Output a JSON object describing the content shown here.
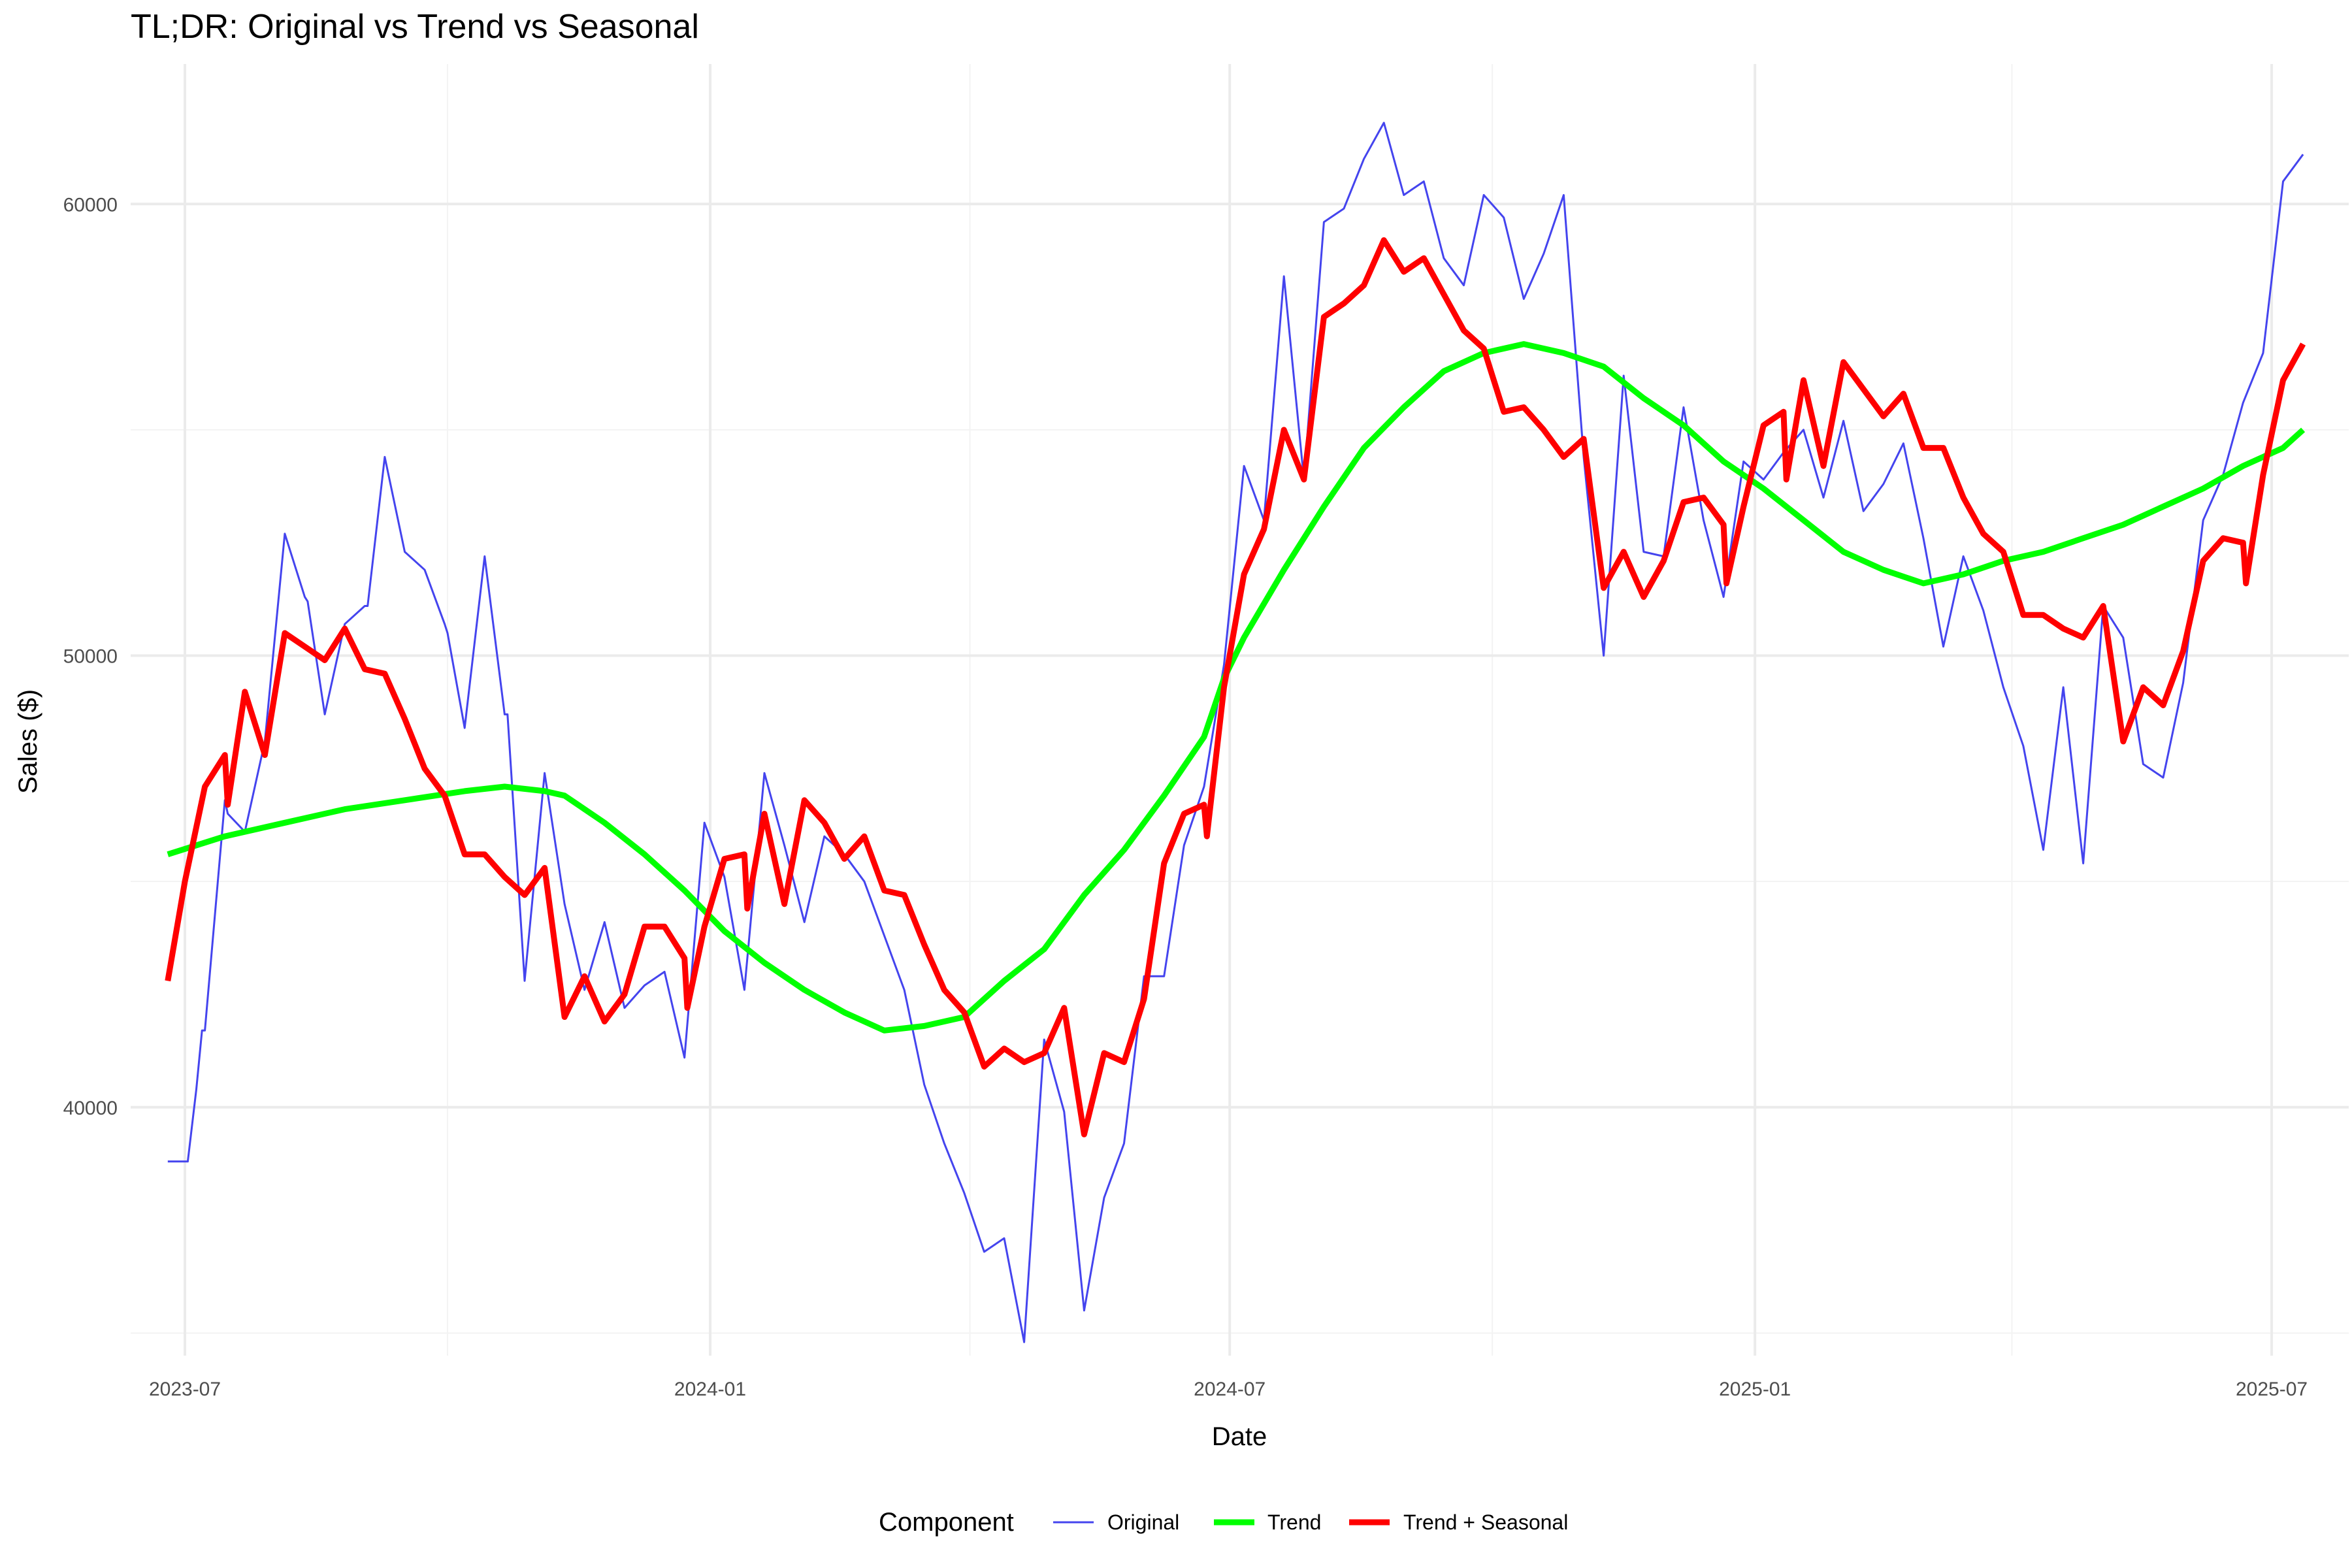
{
  "colors": {
    "original": "#4444ee",
    "trend": "#00ff00",
    "trend_seasonal": "#ff0000",
    "grid_major": "#ebebeb",
    "grid_minor": "#f3f3f3"
  },
  "chart_data": {
    "type": "line",
    "title": "TL;DR: Original vs Trend vs Seasonal",
    "xlabel": "Date",
    "ylabel": "Sales ($)",
    "xlim_days": [
      -19,
      758
    ],
    "ylim": [
      34500,
      63100
    ],
    "x_ticks": [
      {
        "label": "2023-07",
        "day": 0
      },
      {
        "label": "2024-01",
        "day": 184
      },
      {
        "label": "2024-07",
        "day": 366
      },
      {
        "label": "2025-01",
        "day": 550
      },
      {
        "label": "2025-07",
        "day": 731
      }
    ],
    "x_minor_days": [
      92,
      275,
      458,
      640
    ],
    "y_ticks": [
      {
        "label": "40000",
        "value": 40000
      },
      {
        "label": "50000",
        "value": 50000
      },
      {
        "label": "60000",
        "value": 60000
      }
    ],
    "y_minor": [
      35000,
      45000,
      55000
    ],
    "x_origin_date": "2023-07-01",
    "legend_title": "Component",
    "legend_position": "bottom",
    "series": [
      {
        "name": "Original",
        "color_key": "original",
        "width": 3,
        "points": [
          [
            -6,
            38800
          ],
          [
            1,
            38800
          ],
          [
            4,
            40400
          ],
          [
            6,
            41700
          ],
          [
            7,
            41700
          ],
          [
            14,
            46800
          ],
          [
            15,
            46500
          ],
          [
            21,
            46100
          ],
          [
            28,
            48100
          ],
          [
            35,
            52700
          ],
          [
            42,
            51300
          ],
          [
            43,
            51200
          ],
          [
            49,
            48700
          ],
          [
            56,
            50700
          ],
          [
            63,
            51100
          ],
          [
            64,
            51100
          ],
          [
            70,
            54400
          ],
          [
            77,
            52300
          ],
          [
            84,
            51900
          ],
          [
            91,
            50700
          ],
          [
            92,
            50500
          ],
          [
            98,
            48400
          ],
          [
            105,
            52200
          ],
          [
            112,
            48700
          ],
          [
            113,
            48700
          ],
          [
            119,
            42800
          ],
          [
            126,
            47400
          ],
          [
            133,
            44500
          ],
          [
            140,
            42600
          ],
          [
            147,
            44100
          ],
          [
            154,
            42200
          ],
          [
            161,
            42700
          ],
          [
            168,
            43000
          ],
          [
            175,
            41100
          ],
          [
            182,
            46300
          ],
          [
            189,
            45100
          ],
          [
            196,
            42600
          ],
          [
            203,
            47400
          ],
          [
            210,
            45800
          ],
          [
            217,
            44100
          ],
          [
            224,
            46000
          ],
          [
            231,
            45600
          ],
          [
            238,
            45000
          ],
          [
            245,
            43800
          ],
          [
            252,
            42600
          ],
          [
            259,
            40500
          ],
          [
            266,
            39200
          ],
          [
            273,
            38100
          ],
          [
            280,
            36800
          ],
          [
            287,
            37100
          ],
          [
            294,
            34800
          ],
          [
            301,
            41500
          ],
          [
            308,
            39900
          ],
          [
            315,
            35500
          ],
          [
            322,
            38000
          ],
          [
            329,
            39200
          ],
          [
            336,
            42900
          ],
          [
            343,
            42900
          ],
          [
            350,
            45800
          ],
          [
            357,
            47100
          ],
          [
            364,
            49800
          ],
          [
            371,
            54200
          ],
          [
            378,
            53000
          ],
          [
            385,
            58400
          ],
          [
            392,
            53900
          ],
          [
            399,
            59600
          ],
          [
            406,
            59900
          ],
          [
            413,
            61000
          ],
          [
            420,
            61800
          ],
          [
            427,
            60200
          ],
          [
            434,
            60500
          ],
          [
            441,
            58800
          ],
          [
            448,
            58200
          ],
          [
            455,
            60200
          ],
          [
            462,
            59700
          ],
          [
            469,
            57900
          ],
          [
            476,
            58900
          ],
          [
            483,
            60200
          ],
          [
            490,
            54400
          ],
          [
            497,
            50000
          ],
          [
            504,
            56200
          ],
          [
            511,
            52300
          ],
          [
            518,
            52200
          ],
          [
            525,
            55500
          ],
          [
            532,
            53000
          ],
          [
            539,
            51300
          ],
          [
            546,
            54300
          ],
          [
            553,
            53900
          ],
          [
            560,
            54500
          ],
          [
            567,
            55000
          ],
          [
            574,
            53500
          ],
          [
            581,
            55200
          ],
          [
            588,
            53200
          ],
          [
            595,
            53800
          ],
          [
            602,
            54700
          ],
          [
            609,
            52600
          ],
          [
            616,
            50200
          ],
          [
            623,
            52200
          ],
          [
            630,
            51000
          ],
          [
            637,
            49300
          ],
          [
            644,
            48000
          ],
          [
            651,
            45700
          ],
          [
            658,
            49300
          ],
          [
            665,
            45400
          ],
          [
            672,
            51100
          ],
          [
            679,
            50400
          ],
          [
            686,
            47600
          ],
          [
            693,
            47300
          ],
          [
            700,
            49400
          ],
          [
            707,
            53000
          ],
          [
            714,
            54000
          ],
          [
            721,
            55600
          ],
          [
            728,
            56700
          ],
          [
            735,
            60500
          ],
          [
            742,
            61100
          ]
        ]
      },
      {
        "name": "Trend",
        "color_key": "trend",
        "width": 9,
        "points": [
          [
            -6,
            45600
          ],
          [
            14,
            46000
          ],
          [
            35,
            46300
          ],
          [
            56,
            46600
          ],
          [
            77,
            46800
          ],
          [
            98,
            47000
          ],
          [
            112,
            47100
          ],
          [
            126,
            47000
          ],
          [
            133,
            46900
          ],
          [
            147,
            46300
          ],
          [
            161,
            45600
          ],
          [
            175,
            44800
          ],
          [
            189,
            43900
          ],
          [
            203,
            43200
          ],
          [
            217,
            42600
          ],
          [
            231,
            42100
          ],
          [
            245,
            41700
          ],
          [
            259,
            41800
          ],
          [
            273,
            42000
          ],
          [
            287,
            42800
          ],
          [
            301,
            43500
          ],
          [
            315,
            44700
          ],
          [
            329,
            45700
          ],
          [
            343,
            46900
          ],
          [
            357,
            48200
          ],
          [
            364,
            49500
          ],
          [
            371,
            50400
          ],
          [
            385,
            51900
          ],
          [
            399,
            53300
          ],
          [
            413,
            54600
          ],
          [
            427,
            55500
          ],
          [
            441,
            56300
          ],
          [
            455,
            56700
          ],
          [
            469,
            56900
          ],
          [
            483,
            56700
          ],
          [
            497,
            56400
          ],
          [
            511,
            55700
          ],
          [
            525,
            55100
          ],
          [
            539,
            54300
          ],
          [
            553,
            53700
          ],
          [
            567,
            53000
          ],
          [
            581,
            52300
          ],
          [
            595,
            51900
          ],
          [
            609,
            51600
          ],
          [
            623,
            51800
          ],
          [
            637,
            52100
          ],
          [
            651,
            52300
          ],
          [
            665,
            52600
          ],
          [
            679,
            52900
          ],
          [
            693,
            53300
          ],
          [
            707,
            53700
          ],
          [
            721,
            54200
          ],
          [
            735,
            54600
          ],
          [
            742,
            55000
          ]
        ]
      },
      {
        "name": "Trend + Seasonal",
        "color_key": "trend_seasonal",
        "width": 9,
        "points": [
          [
            -6,
            42800
          ],
          [
            0,
            45000
          ],
          [
            7,
            47100
          ],
          [
            14,
            47800
          ],
          [
            15,
            46700
          ],
          [
            21,
            49200
          ],
          [
            28,
            47800
          ],
          [
            35,
            50500
          ],
          [
            42,
            50200
          ],
          [
            49,
            49900
          ],
          [
            56,
            50600
          ],
          [
            63,
            49700
          ],
          [
            70,
            49600
          ],
          [
            77,
            48600
          ],
          [
            84,
            47500
          ],
          [
            91,
            46900
          ],
          [
            98,
            45600
          ],
          [
            105,
            45600
          ],
          [
            112,
            45100
          ],
          [
            119,
            44700
          ],
          [
            126,
            45300
          ],
          [
            133,
            42000
          ],
          [
            140,
            42900
          ],
          [
            147,
            41900
          ],
          [
            154,
            42500
          ],
          [
            161,
            44000
          ],
          [
            168,
            44000
          ],
          [
            175,
            43300
          ],
          [
            176,
            42200
          ],
          [
            182,
            44000
          ],
          [
            189,
            45500
          ],
          [
            196,
            45600
          ],
          [
            197,
            44400
          ],
          [
            203,
            46500
          ],
          [
            210,
            44500
          ],
          [
            217,
            46800
          ],
          [
            224,
            46300
          ],
          [
            231,
            45500
          ],
          [
            238,
            46000
          ],
          [
            245,
            44800
          ],
          [
            252,
            44700
          ],
          [
            259,
            43600
          ],
          [
            266,
            42600
          ],
          [
            273,
            42100
          ],
          [
            280,
            40900
          ],
          [
            287,
            41300
          ],
          [
            294,
            41000
          ],
          [
            301,
            41200
          ],
          [
            308,
            42200
          ],
          [
            315,
            39400
          ],
          [
            322,
            41200
          ],
          [
            329,
            41000
          ],
          [
            336,
            42400
          ],
          [
            343,
            45400
          ],
          [
            350,
            46500
          ],
          [
            357,
            46700
          ],
          [
            358,
            46000
          ],
          [
            364,
            49300
          ],
          [
            371,
            51800
          ],
          [
            378,
            52800
          ],
          [
            385,
            55000
          ],
          [
            392,
            53900
          ],
          [
            399,
            57500
          ],
          [
            406,
            57800
          ],
          [
            413,
            58200
          ],
          [
            420,
            59200
          ],
          [
            427,
            58500
          ],
          [
            434,
            58800
          ],
          [
            441,
            58000
          ],
          [
            448,
            57200
          ],
          [
            455,
            56800
          ],
          [
            462,
            55400
          ],
          [
            469,
            55500
          ],
          [
            476,
            55000
          ],
          [
            483,
            54400
          ],
          [
            490,
            54800
          ],
          [
            497,
            51500
          ],
          [
            504,
            52300
          ],
          [
            511,
            51300
          ],
          [
            518,
            52100
          ],
          [
            525,
            53400
          ],
          [
            532,
            53500
          ],
          [
            539,
            52900
          ],
          [
            540,
            51600
          ],
          [
            546,
            53300
          ],
          [
            553,
            55100
          ],
          [
            560,
            55400
          ],
          [
            561,
            53900
          ],
          [
            567,
            56100
          ],
          [
            574,
            54200
          ],
          [
            581,
            56500
          ],
          [
            588,
            55900
          ],
          [
            595,
            55300
          ],
          [
            602,
            55800
          ],
          [
            609,
            54600
          ],
          [
            616,
            54600
          ],
          [
            623,
            53500
          ],
          [
            630,
            52700
          ],
          [
            637,
            52300
          ],
          [
            644,
            50900
          ],
          [
            651,
            50900
          ],
          [
            658,
            50600
          ],
          [
            665,
            50400
          ],
          [
            672,
            51100
          ],
          [
            679,
            48100
          ],
          [
            686,
            49300
          ],
          [
            693,
            48900
          ],
          [
            700,
            50100
          ],
          [
            707,
            52100
          ],
          [
            714,
            52600
          ],
          [
            721,
            52500
          ],
          [
            722,
            51600
          ],
          [
            728,
            54000
          ],
          [
            735,
            56100
          ],
          [
            742,
            56900
          ]
        ]
      }
    ]
  }
}
